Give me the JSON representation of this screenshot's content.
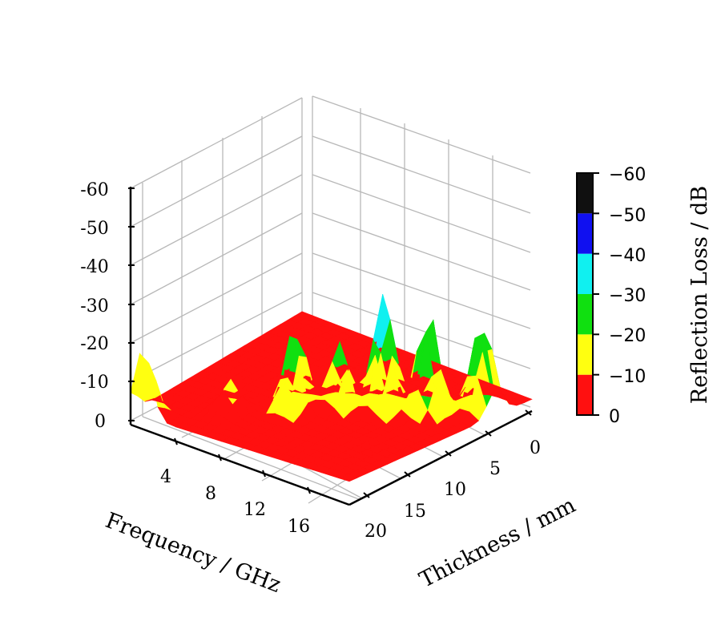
{
  "chart_data": {
    "type": "surface3d",
    "xlabel": "Frequency / GHz",
    "ylabel": "Thickness / mm",
    "zlabel": "",
    "colorbar_label": "Reflection Loss / dB",
    "x_ticks": [
      "4",
      "8",
      "12",
      "16"
    ],
    "y_ticks": [
      "0",
      "5",
      "10",
      "15",
      "20"
    ],
    "z_ticks": [
      "0",
      "-10",
      "-20",
      "-30",
      "-40",
      "-50",
      "-60"
    ],
    "colorbar_ticks": [
      "0",
      "−10",
      "−20",
      "−30",
      "−40",
      "−50",
      "−60"
    ],
    "xlim": [
      1,
      18
    ],
    "ylim": [
      0,
      20
    ],
    "zlim": [
      0,
      -60
    ],
    "colormap_levels": [
      {
        "from": 0,
        "to": -10,
        "color": "#ff1010"
      },
      {
        "from": -10,
        "to": -20,
        "color": "#ffff10"
      },
      {
        "from": -20,
        "to": -30,
        "color": "#10e010"
      },
      {
        "from": -30,
        "to": -40,
        "color": "#10f0f0"
      },
      {
        "from": -40,
        "to": -50,
        "color": "#1010f0"
      },
      {
        "from": -50,
        "to": -60,
        "color": "#101010"
      }
    ],
    "approx_surface_peaks": [
      {
        "frequency": 2,
        "thickness": 20,
        "rl": -20
      },
      {
        "frequency": 6,
        "thickness": 16,
        "rl": -12
      },
      {
        "frequency": 9,
        "thickness": 13,
        "rl": -26
      },
      {
        "frequency": 11,
        "thickness": 11,
        "rl": -22
      },
      {
        "frequency": 13,
        "thickness": 9,
        "rl": -35
      },
      {
        "frequency": 15,
        "thickness": 7,
        "rl": -30
      },
      {
        "frequency": 17,
        "thickness": 4,
        "rl": -26
      }
    ],
    "grid": true
  }
}
